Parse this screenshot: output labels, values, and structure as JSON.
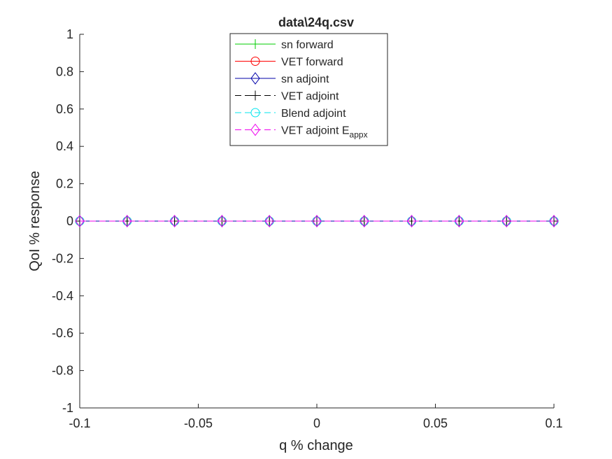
{
  "chart_data": {
    "type": "line",
    "title": "data\\24q.csv",
    "xlabel": "q % change",
    "ylabel": "QoI % response",
    "xlim": [
      -0.1,
      0.1
    ],
    "ylim": [
      -1,
      1
    ],
    "xticks": [
      -0.1,
      -0.05,
      0,
      0.05,
      0.1
    ],
    "xtick_labels": [
      "-0.1",
      "-0.05",
      "0",
      "0.05",
      "0.1"
    ],
    "yticks": [
      1,
      0.8,
      0.6,
      0.4,
      0.2,
      0,
      -0.2,
      -0.4,
      -0.6,
      -0.8,
      -1
    ],
    "ytick_labels": [
      "1",
      "0.8",
      "0.6",
      "0.4",
      "0.2",
      "0",
      "-0.2",
      "-0.4",
      "-0.6",
      "-0.8",
      "-1"
    ],
    "grid": false,
    "legend_position": "top-center",
    "x": [
      -0.1,
      -0.08,
      -0.06,
      -0.04,
      -0.02,
      0,
      0.02,
      0.04,
      0.06,
      0.08,
      0.1
    ],
    "series": [
      {
        "name": "sn forward",
        "color": "#00cc00",
        "marker": "plus",
        "dashed": false,
        "values": [
          0,
          0,
          0,
          0,
          0,
          0,
          0,
          0,
          0,
          0,
          0
        ]
      },
      {
        "name": "VET forward",
        "color": "#ff0000",
        "marker": "circle",
        "dashed": false,
        "values": [
          0,
          0,
          0,
          0,
          0,
          0,
          0,
          0,
          0,
          0,
          0
        ]
      },
      {
        "name": "sn adjoint",
        "color": "#0000aa",
        "marker": "diamond",
        "dashed": false,
        "values": [
          0,
          0,
          0,
          0,
          0,
          0,
          0,
          0,
          0,
          0,
          0
        ]
      },
      {
        "name": "VET adjoint",
        "color": "#000000",
        "marker": "plus",
        "dashed": true,
        "values": [
          0,
          0,
          0,
          0,
          0,
          0,
          0,
          0,
          0,
          0,
          0
        ]
      },
      {
        "name": "Blend adjoint",
        "color": "#00e5ee",
        "marker": "circle",
        "dashed": true,
        "values": [
          0,
          0,
          0,
          0,
          0,
          0,
          0,
          0,
          0,
          0,
          0
        ]
      },
      {
        "name": "VET adjoint E",
        "name_subscript": "appx",
        "color": "#ee00ee",
        "marker": "diamond",
        "dashed": true,
        "values": [
          0,
          0,
          0,
          0,
          0,
          0,
          0,
          0,
          0,
          0,
          0
        ]
      }
    ]
  }
}
